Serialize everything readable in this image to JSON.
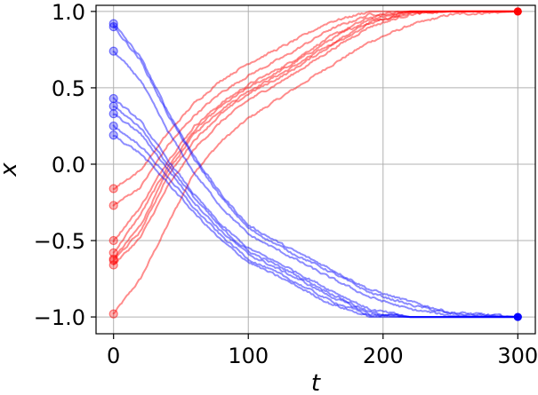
{
  "chart_data": {
    "type": "line",
    "title": "",
    "xlabel": "t",
    "ylabel": "x",
    "xlim": [
      -13,
      313
    ],
    "ylim": [
      -1.11,
      1.04
    ],
    "xticks": [
      0,
      100,
      200,
      300
    ],
    "xtick_labels": [
      "0",
      "100",
      "200",
      "300"
    ],
    "yticks": [
      -1.0,
      -0.5,
      0.0,
      0.5,
      1.0
    ],
    "ytick_labels": [
      "−1.0",
      "−0.5",
      "0.0",
      "0.5",
      "1.0"
    ],
    "grid": true,
    "colors": {
      "positive": "#ff0000",
      "negative": "#0000ff"
    },
    "series": [
      {
        "group": "red",
        "x": [
          0,
          20,
          40,
          60,
          80,
          100,
          130,
          160,
          190,
          220,
          250,
          300
        ],
        "y": [
          -0.98,
          -0.75,
          -0.4,
          -0.05,
          0.15,
          0.3,
          0.47,
          0.64,
          0.8,
          0.91,
          0.98,
          1.0
        ]
      },
      {
        "group": "red",
        "x": [
          0,
          20,
          40,
          60,
          80,
          100,
          130,
          160,
          190,
          220,
          250,
          300
        ],
        "y": [
          -0.62,
          -0.4,
          -0.05,
          0.2,
          0.36,
          0.48,
          0.62,
          0.78,
          0.93,
          0.99,
          1.0,
          1.0
        ]
      },
      {
        "group": "red",
        "x": [
          0,
          20,
          40,
          60,
          80,
          100,
          130,
          160,
          190,
          220,
          250,
          300
        ],
        "y": [
          -0.58,
          -0.33,
          -0.02,
          0.22,
          0.38,
          0.5,
          0.64,
          0.81,
          0.95,
          1.0,
          1.0,
          1.0
        ]
      },
      {
        "group": "red",
        "x": [
          0,
          20,
          40,
          60,
          80,
          100,
          130,
          160,
          190,
          220,
          250,
          300
        ],
        "y": [
          -0.5,
          -0.28,
          0.02,
          0.25,
          0.4,
          0.52,
          0.66,
          0.83,
          0.96,
          1.0,
          1.0,
          1.0
        ]
      },
      {
        "group": "red",
        "x": [
          0,
          20,
          40,
          60,
          80,
          100,
          130,
          160,
          190,
          220,
          250,
          300
        ],
        "y": [
          -0.27,
          -0.15,
          0.12,
          0.32,
          0.47,
          0.58,
          0.72,
          0.88,
          0.98,
          1.0,
          1.0,
          1.0
        ]
      },
      {
        "group": "red",
        "x": [
          0,
          20,
          40,
          60,
          80,
          100,
          130,
          160,
          190,
          220,
          250,
          300
        ],
        "y": [
          -0.16,
          -0.04,
          0.2,
          0.4,
          0.55,
          0.66,
          0.79,
          0.93,
          1.0,
          1.0,
          1.0,
          1.0
        ]
      },
      {
        "group": "red",
        "x": [
          0,
          20,
          40,
          60,
          80,
          100,
          130,
          160,
          190,
          220,
          250,
          300
        ],
        "y": [
          -0.66,
          -0.48,
          -0.15,
          0.1,
          0.28,
          0.42,
          0.57,
          0.74,
          0.9,
          0.98,
          1.0,
          1.0
        ]
      },
      {
        "group": "red",
        "x": [
          0,
          20,
          40,
          60,
          80,
          100,
          130,
          160,
          190,
          220,
          250,
          300
        ],
        "y": [
          -0.63,
          -0.44,
          -0.08,
          0.16,
          0.33,
          0.46,
          0.6,
          0.77,
          0.92,
          0.99,
          1.0,
          1.0
        ]
      },
      {
        "group": "blue",
        "x": [
          0,
          20,
          40,
          60,
          80,
          100,
          130,
          160,
          190,
          220,
          250,
          300
        ],
        "y": [
          0.92,
          0.7,
          0.35,
          0.05,
          -0.2,
          -0.4,
          -0.55,
          -0.68,
          -0.82,
          -0.9,
          -0.97,
          -1.0
        ]
      },
      {
        "group": "blue",
        "x": [
          0,
          20,
          40,
          60,
          80,
          100,
          130,
          160,
          190,
          220,
          250,
          300
        ],
        "y": [
          0.9,
          0.68,
          0.33,
          0.03,
          -0.22,
          -0.42,
          -0.57,
          -0.7,
          -0.84,
          -0.92,
          -0.98,
          -1.0
        ]
      },
      {
        "group": "blue",
        "x": [
          0,
          20,
          40,
          60,
          80,
          100,
          130,
          160,
          190,
          220,
          250,
          300
        ],
        "y": [
          0.74,
          0.55,
          0.22,
          -0.06,
          -0.28,
          -0.46,
          -0.6,
          -0.74,
          -0.87,
          -0.95,
          -0.99,
          -1.0
        ]
      },
      {
        "group": "blue",
        "x": [
          0,
          20,
          40,
          60,
          80,
          100,
          130,
          160,
          190,
          220,
          250,
          300
        ],
        "y": [
          0.43,
          0.28,
          0.03,
          -0.2,
          -0.4,
          -0.55,
          -0.68,
          -0.82,
          -0.95,
          -1.0,
          -1.0,
          -1.0
        ]
      },
      {
        "group": "blue",
        "x": [
          0,
          20,
          40,
          60,
          80,
          100,
          130,
          160,
          190,
          220,
          250,
          300
        ],
        "y": [
          0.38,
          0.24,
          0.0,
          -0.22,
          -0.42,
          -0.57,
          -0.7,
          -0.84,
          -0.97,
          -1.0,
          -1.0,
          -1.0
        ]
      },
      {
        "group": "blue",
        "x": [
          0,
          20,
          40,
          60,
          80,
          100,
          130,
          160,
          190,
          220,
          250,
          300
        ],
        "y": [
          0.33,
          0.2,
          -0.03,
          -0.25,
          -0.44,
          -0.59,
          -0.72,
          -0.86,
          -0.98,
          -1.0,
          -1.0,
          -1.0
        ]
      },
      {
        "group": "blue",
        "x": [
          0,
          20,
          40,
          60,
          80,
          100,
          130,
          160,
          190,
          220,
          250,
          300
        ],
        "y": [
          0.25,
          0.12,
          -0.08,
          -0.29,
          -0.47,
          -0.62,
          -0.75,
          -0.89,
          -0.99,
          -1.0,
          -1.0,
          -1.0
        ]
      },
      {
        "group": "blue",
        "x": [
          0,
          20,
          40,
          60,
          80,
          100,
          130,
          160,
          190,
          220,
          250,
          300
        ],
        "y": [
          0.19,
          0.07,
          -0.12,
          -0.32,
          -0.5,
          -0.64,
          -0.77,
          -0.91,
          -1.0,
          -1.0,
          -1.0,
          -1.0
        ]
      }
    ]
  }
}
